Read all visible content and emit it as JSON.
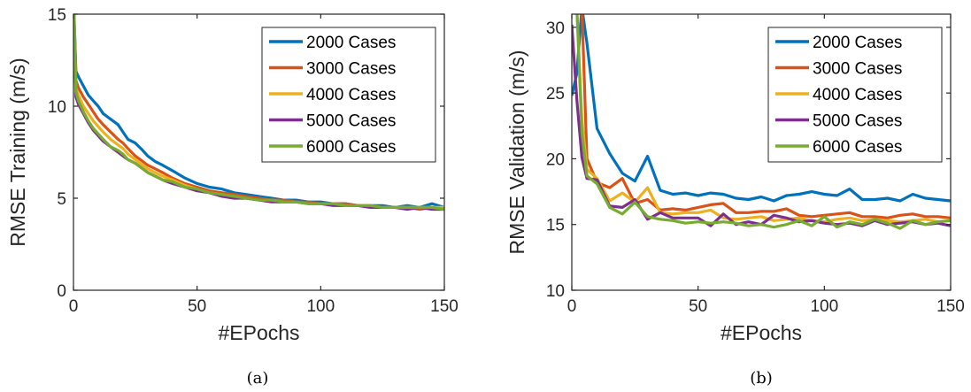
{
  "chart_data": [
    {
      "type": "line",
      "caption": "(a)",
      "xlabel": "#EPochs",
      "ylabel": "RMSE Training (m/s)",
      "xlim": [
        0,
        150
      ],
      "ylim": [
        0,
        15
      ],
      "xticks": [
        0,
        50,
        100,
        150
      ],
      "yticks": [
        0,
        5,
        10,
        15
      ],
      "grid": false,
      "legend_position": "top-right",
      "series": [
        {
          "name": "2000 Cases",
          "color": "#0072BD",
          "x": [
            0,
            1,
            2,
            4,
            6,
            8,
            10,
            12,
            15,
            18,
            20,
            22,
            25,
            28,
            30,
            33,
            36,
            40,
            45,
            50,
            55,
            60,
            65,
            70,
            75,
            80,
            85,
            90,
            95,
            100,
            105,
            110,
            115,
            120,
            125,
            130,
            135,
            140,
            145,
            150
          ],
          "y": [
            16,
            11.9,
            11.6,
            11.1,
            10.6,
            10.3,
            10.0,
            9.6,
            9.3,
            9.0,
            8.6,
            8.2,
            8.0,
            7.6,
            7.3,
            7.0,
            6.8,
            6.5,
            6.1,
            5.8,
            5.6,
            5.5,
            5.3,
            5.2,
            5.1,
            5.0,
            4.9,
            4.9,
            4.8,
            4.8,
            4.7,
            4.7,
            4.6,
            4.6,
            4.6,
            4.5,
            4.6,
            4.5,
            4.7,
            4.5
          ]
        },
        {
          "name": "3000 Cases",
          "color": "#D95319",
          "x": [
            0,
            1,
            2,
            4,
            6,
            8,
            10,
            12,
            15,
            18,
            20,
            22,
            25,
            28,
            30,
            33,
            36,
            40,
            45,
            50,
            55,
            60,
            65,
            70,
            75,
            80,
            85,
            90,
            95,
            100,
            105,
            110,
            115,
            120,
            125,
            130,
            135,
            140,
            145,
            150
          ],
          "y": [
            16,
            11.4,
            11.0,
            10.5,
            10.1,
            9.7,
            9.3,
            9.0,
            8.6,
            8.2,
            8.0,
            7.7,
            7.3,
            7.0,
            6.8,
            6.6,
            6.4,
            6.1,
            5.8,
            5.6,
            5.4,
            5.3,
            5.2,
            5.1,
            5.0,
            4.9,
            4.9,
            4.8,
            4.8,
            4.7,
            4.7,
            4.7,
            4.6,
            4.6,
            4.5,
            4.5,
            4.5,
            4.4,
            4.5,
            4.4
          ]
        },
        {
          "name": "4000 Cases",
          "color": "#EDB120",
          "x": [
            0,
            1,
            2,
            4,
            6,
            8,
            10,
            12,
            15,
            18,
            20,
            22,
            25,
            28,
            30,
            33,
            36,
            40,
            45,
            50,
            55,
            60,
            65,
            70,
            75,
            80,
            85,
            90,
            95,
            100,
            105,
            110,
            115,
            120,
            125,
            130,
            135,
            140,
            145,
            150
          ],
          "y": [
            16,
            11.0,
            10.6,
            10.0,
            9.6,
            9.2,
            8.9,
            8.6,
            8.2,
            7.9,
            7.7,
            7.4,
            7.1,
            6.8,
            6.6,
            6.4,
            6.2,
            6.0,
            5.7,
            5.5,
            5.3,
            5.2,
            5.1,
            5.0,
            4.9,
            4.9,
            4.8,
            4.8,
            4.7,
            4.7,
            4.7,
            4.6,
            4.6,
            4.6,
            4.5,
            4.5,
            4.5,
            4.5,
            4.5,
            4.5
          ]
        },
        {
          "name": "5000 Cases",
          "color": "#7E2F8E",
          "x": [
            0,
            1,
            2,
            4,
            6,
            8,
            10,
            12,
            15,
            18,
            20,
            22,
            25,
            28,
            30,
            33,
            36,
            40,
            45,
            50,
            55,
            60,
            65,
            70,
            75,
            80,
            85,
            90,
            95,
            100,
            105,
            110,
            115,
            120,
            125,
            130,
            135,
            140,
            145,
            150
          ],
          "y": [
            16,
            10.5,
            10.1,
            9.6,
            9.1,
            8.7,
            8.4,
            8.1,
            7.8,
            7.5,
            7.3,
            7.1,
            6.9,
            6.6,
            6.4,
            6.2,
            6.0,
            5.8,
            5.6,
            5.4,
            5.3,
            5.1,
            5.0,
            5.0,
            4.9,
            4.8,
            4.8,
            4.8,
            4.7,
            4.7,
            4.6,
            4.6,
            4.6,
            4.5,
            4.5,
            4.5,
            4.4,
            4.5,
            4.4,
            4.4
          ]
        },
        {
          "name": "6000 Cases",
          "color": "#77AC30",
          "x": [
            0,
            1,
            2,
            4,
            6,
            8,
            10,
            12,
            15,
            18,
            20,
            22,
            25,
            28,
            30,
            33,
            36,
            40,
            45,
            50,
            55,
            60,
            65,
            70,
            75,
            80,
            85,
            90,
            95,
            100,
            105,
            110,
            115,
            120,
            125,
            130,
            135,
            140,
            145,
            150
          ],
          "y": [
            16,
            10.8,
            10.3,
            9.7,
            9.2,
            8.8,
            8.5,
            8.2,
            7.8,
            7.6,
            7.4,
            7.1,
            6.9,
            6.6,
            6.4,
            6.2,
            6.0,
            5.9,
            5.6,
            5.5,
            5.3,
            5.2,
            5.1,
            5.0,
            4.9,
            4.9,
            4.8,
            4.8,
            4.7,
            4.7,
            4.7,
            4.6,
            4.6,
            4.6,
            4.5,
            4.5,
            4.5,
            4.5,
            4.5,
            4.4
          ]
        }
      ]
    },
    {
      "type": "line",
      "caption": "(b)",
      "xlabel": "#EPochs",
      "ylabel": "RMSE Validation (m/s)",
      "xlim": [
        0,
        150
      ],
      "ylim": [
        10,
        31
      ],
      "xticks": [
        0,
        50,
        100,
        150
      ],
      "yticks": [
        10,
        15,
        20,
        25,
        30
      ],
      "grid": false,
      "legend_position": "top-right",
      "series": [
        {
          "name": "2000 Cases",
          "color": "#0072BD",
          "x": [
            0,
            2,
            4,
            6,
            10,
            15,
            20,
            25,
            30,
            35,
            40,
            45,
            50,
            55,
            60,
            65,
            70,
            75,
            80,
            85,
            90,
            95,
            100,
            105,
            110,
            115,
            120,
            125,
            130,
            135,
            140,
            145,
            150
          ],
          "y": [
            24.8,
            26.5,
            31.5,
            28.8,
            22.3,
            20.4,
            18.9,
            18.3,
            20.2,
            17.6,
            17.3,
            17.4,
            17.2,
            17.4,
            17.3,
            17.0,
            16.9,
            17.1,
            16.8,
            17.2,
            17.3,
            17.5,
            17.3,
            17.2,
            17.7,
            16.9,
            16.9,
            17.0,
            16.8,
            17.3,
            17.0,
            16.9,
            16.8
          ]
        },
        {
          "name": "3000 Cases",
          "color": "#D95319",
          "x": [
            0,
            2,
            4,
            6,
            10,
            15,
            20,
            25,
            30,
            35,
            40,
            45,
            50,
            55,
            60,
            65,
            70,
            75,
            80,
            85,
            90,
            95,
            100,
            105,
            110,
            115,
            120,
            125,
            130,
            135,
            140,
            145,
            150
          ],
          "y": [
            31.5,
            31.5,
            31.5,
            20.0,
            18.2,
            17.8,
            18.5,
            16.6,
            16.9,
            16.1,
            16.2,
            16.1,
            16.3,
            16.5,
            16.6,
            15.9,
            15.9,
            16.0,
            16.0,
            16.2,
            15.7,
            15.6,
            15.7,
            15.8,
            15.9,
            15.6,
            15.6,
            15.5,
            15.7,
            15.8,
            15.6,
            15.6,
            15.5
          ]
        },
        {
          "name": "4000 Cases",
          "color": "#EDB120",
          "x": [
            0,
            2,
            4,
            6,
            10,
            15,
            20,
            25,
            30,
            35,
            40,
            45,
            50,
            55,
            60,
            65,
            70,
            75,
            80,
            85,
            90,
            95,
            100,
            105,
            110,
            115,
            120,
            125,
            130,
            135,
            140,
            145,
            150
          ],
          "y": [
            31.5,
            31.5,
            23.0,
            19.2,
            18.5,
            16.8,
            17.4,
            16.7,
            17.8,
            15.9,
            15.8,
            15.9,
            15.9,
            16.1,
            15.5,
            15.4,
            15.5,
            15.6,
            15.3,
            15.4,
            15.5,
            15.3,
            15.2,
            15.4,
            15.5,
            15.3,
            15.4,
            15.3,
            15.2,
            15.3,
            15.4,
            15.2,
            15.3
          ]
        },
        {
          "name": "5000 Cases",
          "color": "#7E2F8E",
          "x": [
            0,
            2,
            4,
            6,
            10,
            15,
            20,
            25,
            30,
            35,
            40,
            45,
            50,
            55,
            60,
            65,
            70,
            75,
            80,
            85,
            90,
            95,
            100,
            105,
            110,
            115,
            120,
            125,
            130,
            135,
            140,
            145,
            150
          ],
          "y": [
            30.2,
            24.5,
            20.1,
            18.5,
            18.4,
            16.4,
            16.3,
            16.9,
            15.4,
            15.9,
            15.5,
            15.5,
            15.5,
            14.9,
            15.8,
            15.0,
            15.2,
            15.0,
            15.7,
            15.5,
            15.2,
            15.3,
            15.1,
            15.0,
            15.1,
            14.9,
            15.3,
            15.0,
            15.1,
            15.2,
            15.0,
            15.1,
            14.9
          ]
        },
        {
          "name": "6000 Cases",
          "color": "#77AC30",
          "x": [
            0,
            2,
            4,
            6,
            10,
            15,
            20,
            25,
            30,
            35,
            40,
            45,
            50,
            55,
            60,
            65,
            70,
            75,
            80,
            85,
            90,
            95,
            100,
            105,
            110,
            115,
            120,
            125,
            130,
            135,
            140,
            145,
            150
          ],
          "y": [
            31.5,
            31.5,
            22.0,
            18.7,
            18.1,
            16.3,
            15.8,
            16.7,
            15.6,
            15.4,
            15.3,
            15.1,
            15.2,
            15.1,
            15.2,
            15.1,
            14.9,
            15.0,
            14.8,
            15.0,
            15.3,
            14.9,
            15.6,
            14.8,
            15.2,
            15.0,
            15.4,
            15.1,
            14.7,
            15.3,
            15.0,
            15.2,
            15.3
          ]
        }
      ]
    }
  ]
}
